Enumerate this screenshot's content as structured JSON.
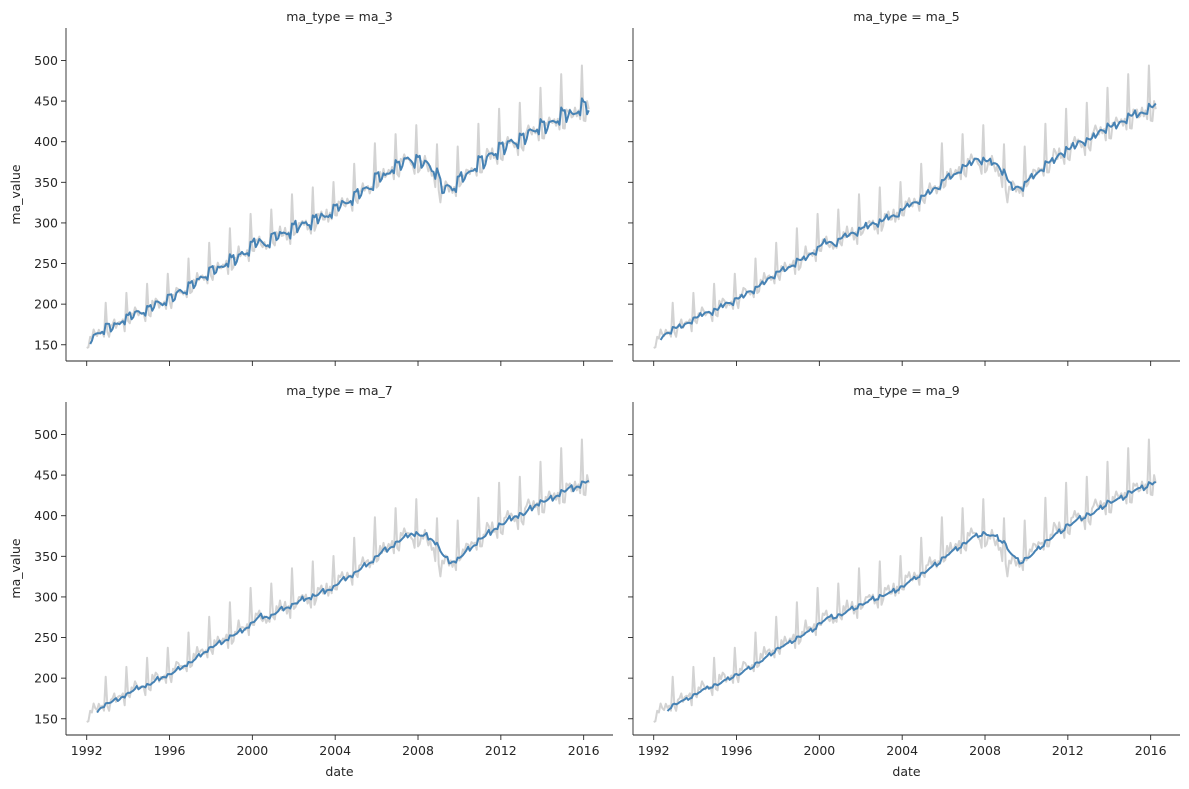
{
  "chart_data": {
    "type": "line",
    "layout": "2x2 facet grid, shared axes",
    "xlabel": "date",
    "ylabel": "ma_value",
    "xlim": [
      "1991-01",
      "2017-06"
    ],
    "ylim": [
      130,
      540
    ],
    "x_ticks": [
      "1992",
      "1996",
      "2000",
      "2004",
      "2008",
      "2012",
      "2016"
    ],
    "y_ticks": [
      150,
      200,
      250,
      300,
      350,
      400,
      450,
      500
    ],
    "colors": {
      "raw": "#d3d3d3",
      "moving_average": "#4682b4"
    },
    "raw_series": {
      "date_start": "1992-01",
      "frequency": "monthly",
      "count": 292,
      "pattern": "upward trend with strong annual seasonality; dip in 2008-2009",
      "trend_anchors": [
        [
          "1992-01",
          155
        ],
        [
          "1996-01",
          205
        ],
        [
          "2000-01",
          268
        ],
        [
          "2004-01",
          312
        ],
        [
          "2007-06",
          375
        ],
        [
          "2008-06",
          370
        ],
        [
          "2009-03",
          335
        ],
        [
          "2012-01",
          390
        ],
        [
          "2016-04",
          440
        ]
      ]
    },
    "facets": [
      {
        "title": "ma_type = ma_3",
        "ma_window": 3
      },
      {
        "title": "ma_type = ma_5",
        "ma_window": 5
      },
      {
        "title": "ma_type = ma_7",
        "ma_window": 7
      },
      {
        "title": "ma_type = ma_9",
        "ma_window": 9
      }
    ]
  }
}
